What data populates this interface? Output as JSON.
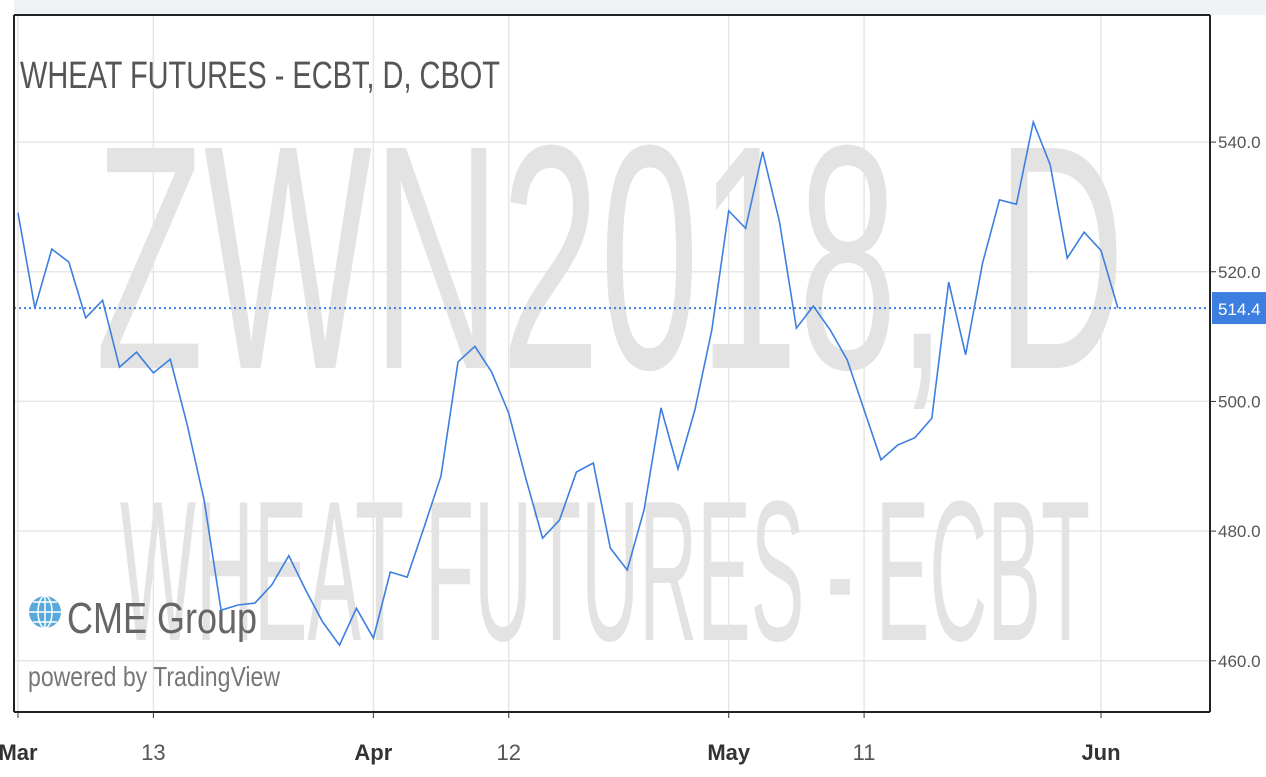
{
  "chart_data": {
    "type": "line",
    "title": "WHEAT FUTURES - ECBT, D, CBOT",
    "watermark": [
      "ZWN2018, D",
      "WHEAT FUTURES - ECBT"
    ],
    "branding": [
      "CME Group",
      "powered by TradingView"
    ],
    "categories": [
      "Mar",
      null,
      null,
      null,
      null,
      null,
      null,
      null,
      "13",
      null,
      null,
      null,
      null,
      null,
      null,
      null,
      null,
      null,
      null,
      null,
      null,
      "Apr",
      null,
      null,
      null,
      null,
      null,
      null,
      null,
      "12",
      null,
      null,
      null,
      null,
      null,
      null,
      null,
      null,
      null,
      null,
      null,
      null,
      "May",
      null,
      null,
      null,
      null,
      null,
      null,
      null,
      "11",
      null,
      null,
      null,
      null,
      null,
      null,
      null,
      null,
      null,
      null,
      null,
      null,
      null,
      "Jun",
      null
    ],
    "series": [
      {
        "name": "ZWN2018",
        "color": "#3d7fe0",
        "values": [
          529.1,
          514.4,
          523.5,
          521.5,
          512.9,
          515.6,
          505.3,
          507.6,
          504.4,
          506.5,
          496.4,
          484.8,
          467.8,
          468.6,
          468.9,
          471.7,
          476.2,
          470.9,
          466.0,
          462.4,
          468.1,
          463.5,
          473.7,
          472.9,
          480.6,
          488.5,
          506.1,
          508.5,
          504.5,
          498.2,
          488.2,
          478.9,
          481.7,
          489.1,
          490.5,
          477.4,
          474.0,
          483.3,
          499.0,
          489.6,
          498.7,
          511.0,
          529.4,
          526.7,
          538.5,
          527.7,
          511.3,
          514.7,
          511.0,
          506.4,
          498.7,
          491.0,
          493.3,
          494.4,
          497.4,
          518.4,
          507.2,
          521.3,
          531.1,
          530.4,
          543.1,
          536.5,
          522.1,
          526.1,
          523.3,
          514.4
        ]
      }
    ],
    "ylim": [
      452.1,
      559.6
    ],
    "yticks": [
      {
        "value": 460,
        "label": "460.0"
      },
      {
        "value": 480,
        "label": "480.0"
      },
      {
        "value": 500,
        "label": "500.0"
      },
      {
        "value": 520,
        "label": "520.0"
      },
      {
        "value": 540,
        "label": "540.0"
      }
    ],
    "last_value_label": "514.4",
    "grid": true
  }
}
